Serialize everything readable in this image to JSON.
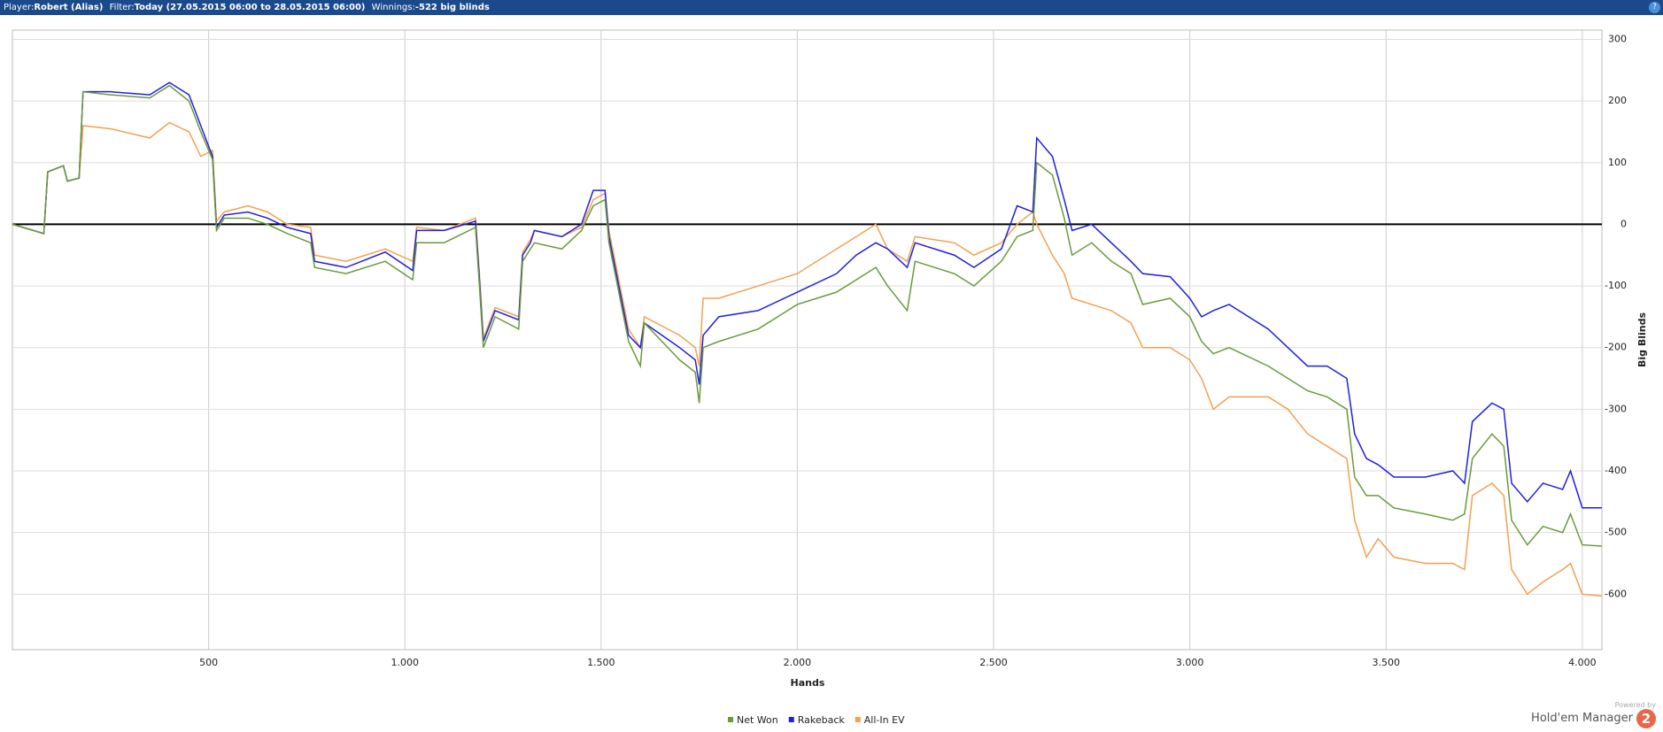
{
  "header": {
    "player_label": "Player:",
    "player": "Robert (Alias)",
    "filter_label": "Filter:",
    "filter": "Today (27.05.2015 06:00 to 28.05.2015 06:00)",
    "winnings_label": "Winnings:",
    "winnings": "-522 big blinds",
    "help": "?"
  },
  "branding": {
    "powered": "Powered by",
    "product": "Hold'em Manager",
    "logo": "2"
  },
  "chart_data": {
    "type": "line",
    "x_label": "Hands",
    "y_label": "Big Blinds",
    "grid": true,
    "zero_line": true,
    "legend": "bottom",
    "xlim": [
      0,
      4050
    ],
    "ylim": [
      -690,
      315
    ],
    "xticks": [
      {
        "value": 500,
        "label": "500"
      },
      {
        "value": 1000,
        "label": "1.000"
      },
      {
        "value": 1500,
        "label": "1.500"
      },
      {
        "value": 2000,
        "label": "2.000"
      },
      {
        "value": 2500,
        "label": "2.500"
      },
      {
        "value": 3000,
        "label": "3.000"
      },
      {
        "value": 3500,
        "label": "3.500"
      },
      {
        "value": 4000,
        "label": "4.000"
      }
    ],
    "yticks": [
      300,
      200,
      100,
      0,
      -100,
      -200,
      -300,
      -400,
      -500,
      -600
    ],
    "x": [
      0,
      80,
      90,
      130,
      140,
      170,
      180,
      250,
      350,
      400,
      450,
      480,
      510,
      520,
      540,
      600,
      650,
      700,
      760,
      770,
      850,
      950,
      1020,
      1030,
      1100,
      1180,
      1190,
      1200,
      1230,
      1290,
      1300,
      1320,
      1330,
      1400,
      1450,
      1480,
      1510,
      1520,
      1570,
      1600,
      1610,
      1700,
      1740,
      1750,
      1760,
      1800,
      1900,
      2000,
      2100,
      2150,
      2200,
      2230,
      2280,
      2300,
      2400,
      2450,
      2520,
      2560,
      2600,
      2610,
      2650,
      2680,
      2700,
      2750,
      2800,
      2850,
      2880,
      2950,
      3000,
      3030,
      3060,
      3100,
      3200,
      3250,
      3300,
      3350,
      3400,
      3420,
      3450,
      3480,
      3520,
      3600,
      3670,
      3700,
      3720,
      3770,
      3800,
      3820,
      3860,
      3900,
      3950,
      3970,
      4000,
      4050
    ],
    "series": [
      {
        "name": "Net Won",
        "color": "#6a9a3a",
        "values": [
          0,
          -15,
          85,
          95,
          70,
          75,
          215,
          210,
          205,
          225,
          200,
          150,
          105,
          -10,
          10,
          10,
          0,
          -15,
          -30,
          -70,
          -80,
          -60,
          -90,
          -30,
          -30,
          -5,
          -100,
          -200,
          -150,
          -170,
          -60,
          -40,
          -30,
          -40,
          -10,
          30,
          40,
          -30,
          -190,
          -230,
          -160,
          -220,
          -240,
          -290,
          -200,
          -190,
          -170,
          -130,
          -110,
          -90,
          -70,
          -100,
          -140,
          -60,
          -80,
          -100,
          -60,
          -20,
          -10,
          100,
          80,
          10,
          -50,
          -30,
          -60,
          -80,
          -130,
          -120,
          -150,
          -190,
          -210,
          -200,
          -230,
          -250,
          -270,
          -280,
          -300,
          -410,
          -440,
          -440,
          -460,
          -470,
          -480,
          -470,
          -380,
          -340,
          -360,
          -480,
          -520,
          -490,
          -500,
          -470,
          -520,
          -522
        ]
      },
      {
        "name": "Rakeback",
        "color": "#1f1fe0",
        "values": [
          0,
          -15,
          85,
          95,
          70,
          75,
          215,
          215,
          210,
          230,
          210,
          160,
          110,
          -5,
          15,
          20,
          10,
          -5,
          -15,
          -60,
          -70,
          -45,
          -75,
          -10,
          -10,
          5,
          -90,
          -190,
          -140,
          -155,
          -50,
          -30,
          -10,
          -20,
          0,
          55,
          55,
          -20,
          -180,
          -200,
          -160,
          -200,
          -220,
          -260,
          -180,
          -150,
          -140,
          -110,
          -80,
          -50,
          -30,
          -40,
          -70,
          -30,
          -50,
          -70,
          -40,
          30,
          20,
          140,
          110,
          40,
          -10,
          0,
          -30,
          -60,
          -80,
          -85,
          -120,
          -150,
          -140,
          -130,
          -170,
          -200,
          -230,
          -230,
          -250,
          -340,
          -380,
          -390,
          -410,
          -410,
          -400,
          -420,
          -320,
          -290,
          -300,
          -420,
          -450,
          -420,
          -430,
          -400,
          -460,
          -460
        ]
      },
      {
        "name": "All-In EV",
        "color": "#f4a050",
        "values": [
          0,
          -15,
          85,
          95,
          70,
          75,
          160,
          155,
          140,
          165,
          150,
          110,
          120,
          5,
          20,
          30,
          20,
          0,
          -5,
          -50,
          -60,
          -40,
          -60,
          -5,
          -10,
          10,
          -80,
          -185,
          -135,
          -150,
          -45,
          -25,
          -10,
          -20,
          -5,
          40,
          50,
          -10,
          -170,
          -200,
          -150,
          -180,
          -200,
          -230,
          -120,
          -120,
          -100,
          -80,
          -40,
          -20,
          0,
          -40,
          -60,
          -20,
          -30,
          -50,
          -30,
          0,
          20,
          0,
          -50,
          -80,
          -120,
          -130,
          -140,
          -160,
          -200,
          -200,
          -220,
          -250,
          -300,
          -280,
          -280,
          -300,
          -340,
          -360,
          -380,
          -480,
          -540,
          -510,
          -540,
          -550,
          -550,
          -560,
          -440,
          -420,
          -440,
          -560,
          -600,
          -580,
          -560,
          -550,
          -600,
          -603
        ]
      }
    ]
  }
}
